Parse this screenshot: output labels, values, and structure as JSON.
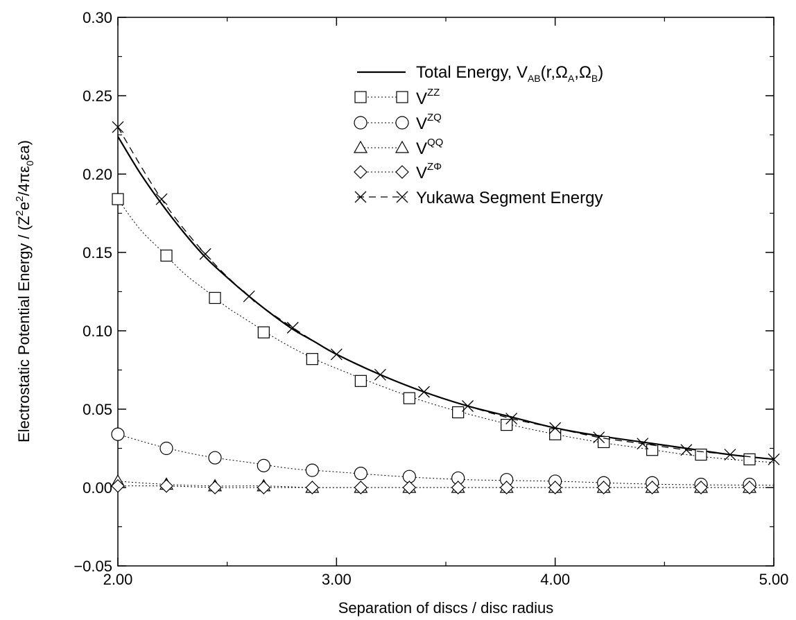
{
  "chart_data": {
    "type": "line",
    "xlabel": "Separation of discs / disc radius",
    "ylabel": "Electrostatic Potential Energy / (Z²e²/4πε₀εa)",
    "xlim": [
      2.0,
      5.0
    ],
    "ylim": [
      -0.05,
      0.3
    ],
    "x_ticks": [
      "2.00",
      "3.00",
      "4.00",
      "5.00"
    ],
    "y_ticks": [
      "−0.05",
      "0.00",
      "0.05",
      "0.10",
      "0.15",
      "0.20",
      "0.25",
      "0.30"
    ],
    "y_tick_values": [
      -0.05,
      0.0,
      0.05,
      0.1,
      0.15,
      0.2,
      0.25,
      0.3
    ],
    "x_tick_values": [
      2.0,
      3.0,
      4.0,
      5.0
    ],
    "legend_position": "top-right",
    "legend_labels": {
      "total": {
        "main": "Total Energy, V",
        "sub1": "AB",
        "paren_open": "(r,Ω",
        "sub2": "A",
        "comma": ",Ω",
        "sub3": "B",
        "paren_close": ")"
      },
      "vzz": {
        "main": "V",
        "sup": "ZZ"
      },
      "vzq": {
        "main": "V",
        "sup": "ZQ"
      },
      "vqq": {
        "main": "V",
        "sup": "QQ"
      },
      "vzphi": {
        "main": "V",
        "sup": "ZΦ"
      },
      "yukawa": {
        "main": "Yukawa Segment Energy"
      }
    },
    "series": [
      {
        "key": "total",
        "marker": "none",
        "line": "solid",
        "x": [
          2.0,
          2.1,
          2.2,
          2.3,
          2.4,
          2.5,
          2.6,
          2.7,
          2.8,
          2.9,
          3.0,
          3.2,
          3.4,
          3.6,
          3.8,
          4.0,
          4.2,
          4.4,
          4.6,
          4.8,
          5.0
        ],
        "values": [
          0.224,
          0.201,
          0.181,
          0.163,
          0.147,
          0.134,
          0.122,
          0.111,
          0.101,
          0.093,
          0.085,
          0.072,
          0.061,
          0.052,
          0.045,
          0.038,
          0.033,
          0.029,
          0.025,
          0.021,
          0.018
        ]
      },
      {
        "key": "vzz",
        "marker": "square",
        "line": "dotted",
        "x": [
          2.0,
          2.222,
          2.444,
          2.667,
          2.889,
          3.111,
          3.333,
          3.556,
          3.778,
          4.0,
          4.222,
          4.444,
          4.667,
          4.889
        ],
        "values": [
          0.184,
          0.148,
          0.121,
          0.099,
          0.082,
          0.068,
          0.057,
          0.048,
          0.04,
          0.034,
          0.029,
          0.024,
          0.021,
          0.018
        ],
        "line_x": [
          2.0,
          2.1,
          2.2,
          2.3,
          2.4,
          2.5,
          2.6,
          2.7,
          2.8,
          2.9,
          3.0,
          3.2,
          3.4,
          3.6,
          3.8,
          4.0,
          4.2,
          4.4,
          4.6,
          4.8,
          5.0
        ],
        "line_values": [
          0.184,
          0.165,
          0.151,
          0.137,
          0.126,
          0.115,
          0.106,
          0.097,
          0.089,
          0.082,
          0.076,
          0.065,
          0.055,
          0.047,
          0.04,
          0.034,
          0.029,
          0.025,
          0.021,
          0.018,
          0.016
        ]
      },
      {
        "key": "vzq",
        "marker": "circle",
        "line": "dotted",
        "x": [
          2.0,
          2.222,
          2.444,
          2.667,
          2.889,
          3.111,
          3.333,
          3.556,
          3.778,
          4.0,
          4.222,
          4.444,
          4.667,
          4.889
        ],
        "values": [
          0.034,
          0.025,
          0.019,
          0.014,
          0.011,
          0.009,
          0.007,
          0.006,
          0.005,
          0.004,
          0.003,
          0.003,
          0.002,
          0.002
        ],
        "line_x": [
          2.0,
          2.2,
          2.4,
          2.6,
          2.8,
          3.0,
          3.3,
          3.6,
          4.0,
          4.5,
          5.0
        ],
        "line_values": [
          0.034,
          0.026,
          0.02,
          0.016,
          0.012,
          0.01,
          0.007,
          0.005,
          0.004,
          0.002,
          0.0015
        ]
      },
      {
        "key": "vqq",
        "marker": "triangle",
        "line": "dotted",
        "x": [
          2.0,
          2.222,
          2.444,
          2.667,
          2.889,
          3.111,
          3.333,
          3.556,
          3.778,
          4.0,
          4.222,
          4.444,
          4.667,
          4.889
        ],
        "values": [
          0.004,
          0.002,
          0.001,
          0.001,
          0.0,
          0.0,
          0.0,
          0.0,
          0.0,
          0.0,
          0.0,
          0.0,
          0.0,
          0.0
        ]
      },
      {
        "key": "vzphi",
        "marker": "diamond",
        "line": "dotted",
        "x": [
          2.0,
          2.222,
          2.444,
          2.667,
          2.889,
          3.111,
          3.333,
          3.556,
          3.778,
          4.0,
          4.222,
          4.444,
          4.667,
          4.889
        ],
        "values": [
          0.001,
          0.001,
          0.0,
          0.0,
          0.0,
          0.0,
          0.0,
          0.0,
          0.0,
          0.0,
          0.0,
          0.0,
          0.0,
          0.0
        ]
      },
      {
        "key": "yukawa",
        "marker": "x",
        "line": "dashed",
        "x": [
          2.0,
          2.2,
          2.4,
          2.6,
          2.8,
          3.0,
          3.2,
          3.4,
          3.6,
          3.8,
          4.0,
          4.2,
          4.4,
          4.6,
          4.8,
          5.0
        ],
        "values": [
          0.23,
          0.184,
          0.149,
          0.122,
          0.102,
          0.085,
          0.072,
          0.061,
          0.052,
          0.044,
          0.038,
          0.032,
          0.028,
          0.024,
          0.021,
          0.018
        ]
      }
    ]
  }
}
